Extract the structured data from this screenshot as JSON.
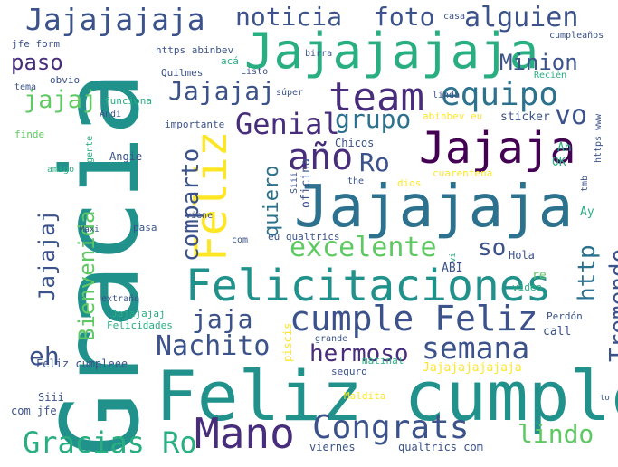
{
  "colors": {
    "dark_purple": "#440154",
    "indigo": "#472d7b",
    "slate": "#3b528b",
    "blue": "#2c728e",
    "teal": "#21918c",
    "sea": "#28ae80",
    "green": "#5ec962",
    "lime": "#addc30",
    "yellow": "#fde725"
  },
  "words": [
    {
      "t": "Gracia"
    },
    {
      "t": "Feliz cumple"
    },
    {
      "t": "Jajajaja"
    },
    {
      "t": "Jajajajaja"
    },
    {
      "t": "Jajaja"
    },
    {
      "t": "Felicitaciones"
    },
    {
      "t": "cumple Feliz"
    },
    {
      "t": "Feliz"
    },
    {
      "t": "team"
    },
    {
      "t": "Jajajajaja"
    },
    {
      "t": "Mano"
    },
    {
      "t": "Congrats"
    },
    {
      "t": "Gracias Ro"
    },
    {
      "t": "equipo"
    },
    {
      "t": "año"
    },
    {
      "t": "excelente"
    },
    {
      "t": "semana"
    },
    {
      "t": "Nachito"
    },
    {
      "t": "noticia"
    },
    {
      "t": "foto"
    },
    {
      "t": "alguien"
    },
    {
      "t": "Jajajaj"
    },
    {
      "t": "Genial"
    },
    {
      "t": "grupo"
    },
    {
      "t": "Ro"
    },
    {
      "t": "vo"
    },
    {
      "t": "jaja"
    },
    {
      "t": "hermoso"
    },
    {
      "t": "lindo"
    },
    {
      "t": "Tremendo"
    },
    {
      "t": "http"
    },
    {
      "t": "so"
    },
    {
      "t": "comparto"
    },
    {
      "t": "quiero"
    },
    {
      "t": "Bienvenida"
    },
    {
      "t": "Jajajaj"
    },
    {
      "t": "eh"
    },
    {
      "t": "jajaj"
    },
    {
      "t": "paso"
    },
    {
      "t": "Minion"
    },
    {
      "t": "Ah"
    },
    {
      "t": "OK"
    },
    {
      "t": "Ay"
    },
    {
      "t": "ABI"
    },
    {
      "t": "re"
    },
    {
      "t": "Hola"
    },
    {
      "t": "video"
    },
    {
      "t": "Perdón"
    },
    {
      "t": "call"
    },
    {
      "t": "Jajajajajajaja"
    },
    {
      "t": "Maldita"
    },
    {
      "t": "viernes"
    },
    {
      "t": "qualtrics com"
    },
    {
      "t": "to"
    },
    {
      "t": "com jfe"
    },
    {
      "t": "Siii"
    },
    {
      "t": "Feliz cumpleee"
    },
    {
      "t": "seguro"
    },
    {
      "t": "matinal"
    },
    {
      "t": "grande"
    },
    {
      "t": "piscis"
    },
    {
      "t": "Felicidades"
    },
    {
      "t": "Jajajajaj"
    },
    {
      "t": "extraño"
    },
    {
      "t": "pasa"
    },
    {
      "t": "Maxi"
    },
    {
      "t": "com"
    },
    {
      "t": "eu qualtrics"
    },
    {
      "t": "oficina"
    },
    {
      "t": "Siii"
    },
    {
      "t": "vi"
    },
    {
      "t": "viene"
    },
    {
      "t": "the"
    },
    {
      "t": "dios"
    },
    {
      "t": "cuarentena"
    },
    {
      "t": "Chicos"
    },
    {
      "t": "Angie"
    },
    {
      "t": "gente"
    },
    {
      "t": "amigo"
    },
    {
      "t": "finde"
    },
    {
      "t": "importante"
    },
    {
      "t": "Andi"
    },
    {
      "t": "funciona"
    },
    {
      "t": "tema"
    },
    {
      "t": "obvio"
    },
    {
      "t": "jfe form"
    },
    {
      "t": "https abinbev"
    },
    {
      "t": "acá"
    },
    {
      "t": "Quilmes"
    },
    {
      "t": "Listo"
    },
    {
      "t": "birra"
    },
    {
      "t": "casa"
    },
    {
      "t": "cumpleaños"
    },
    {
      "t": "Recién"
    },
    {
      "t": "súper"
    },
    {
      "t": "linda"
    },
    {
      "t": "abinbev eu"
    },
    {
      "t": "sticker"
    },
    {
      "t": "https www"
    },
    {
      "t": "tmb"
    }
  ]
}
